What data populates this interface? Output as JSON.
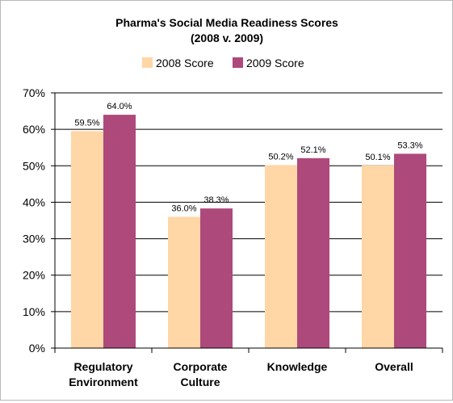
{
  "chart_data": {
    "type": "bar",
    "title": [
      "Pharma's Social Media Readiness Scores",
      "(2008 v. 2009)"
    ],
    "categories": [
      [
        "Regulatory",
        "Environment"
      ],
      [
        "Corporate",
        "Culture"
      ],
      [
        "Knowledge"
      ],
      [
        "Overall"
      ]
    ],
    "series": [
      {
        "name": "2008 Score",
        "color": "#ffd6a5",
        "values": [
          59.5,
          36.0,
          50.2,
          50.1
        ],
        "labels": [
          "59.5%",
          "36.0%",
          "50.2%",
          "50.1%"
        ]
      },
      {
        "name": "2009 Score",
        "color": "#ad4a7b",
        "values": [
          64.0,
          38.3,
          52.1,
          53.3
        ],
        "labels": [
          "64.0%",
          "38.3%",
          "52.1%",
          "53.3%"
        ]
      }
    ],
    "ylim": [
      0,
      70
    ],
    "yticks": [
      0,
      10,
      20,
      30,
      40,
      50,
      60,
      70
    ],
    "ytick_labels": [
      "0%",
      "10%",
      "20%",
      "30%",
      "40%",
      "50%",
      "60%",
      "70%"
    ],
    "grid": true,
    "legend_position": "top"
  }
}
